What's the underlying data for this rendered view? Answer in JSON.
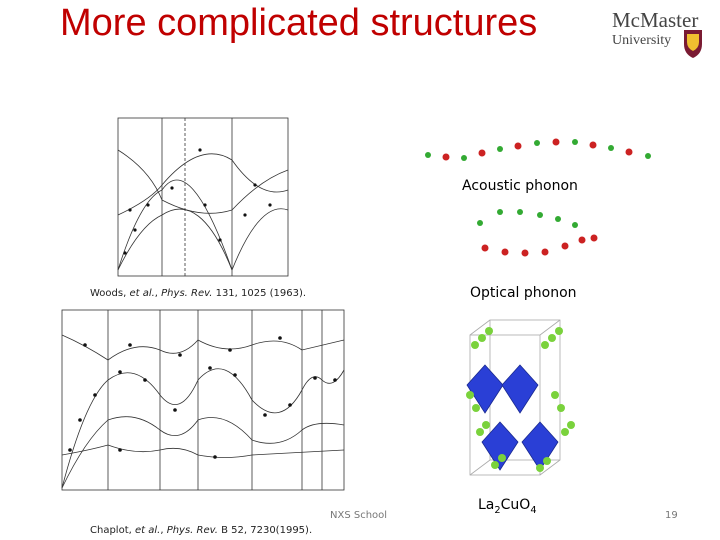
{
  "header": {
    "title": "More complicated structures",
    "logo": {
      "name": "McMaster",
      "subtitle": "University"
    }
  },
  "figures": {
    "acoustic_label": "Acoustic phonon",
    "optical_label": "Optical phonon",
    "structure_label": [
      {
        "text": "La",
        "sub": false
      },
      {
        "text": "2",
        "sub": true
      },
      {
        "text": "Cu",
        "sub": false
      },
      {
        "text": "O",
        "sub": false
      },
      {
        "text": "4",
        "sub": true
      }
    ]
  },
  "citations": [
    [
      {
        "text": "Woods, ",
        "italic": false
      },
      {
        "text": "et al.",
        "italic": true
      },
      {
        "text": ", ",
        "italic": false
      },
      {
        "text": "Phys. Rev.",
        "italic": true
      },
      {
        "text": " 131, 1025 (1963).",
        "italic": false
      }
    ],
    [
      {
        "text": "Chaplot, ",
        "italic": false
      },
      {
        "text": "et al.",
        "italic": true
      },
      {
        "text": ", ",
        "italic": false
      },
      {
        "text": "Phys. Rev.",
        "italic": true
      },
      {
        "text": " B 52, 7230(1995).",
        "italic": false
      }
    ]
  ],
  "footer": {
    "event": "NXS School",
    "page": "19"
  }
}
